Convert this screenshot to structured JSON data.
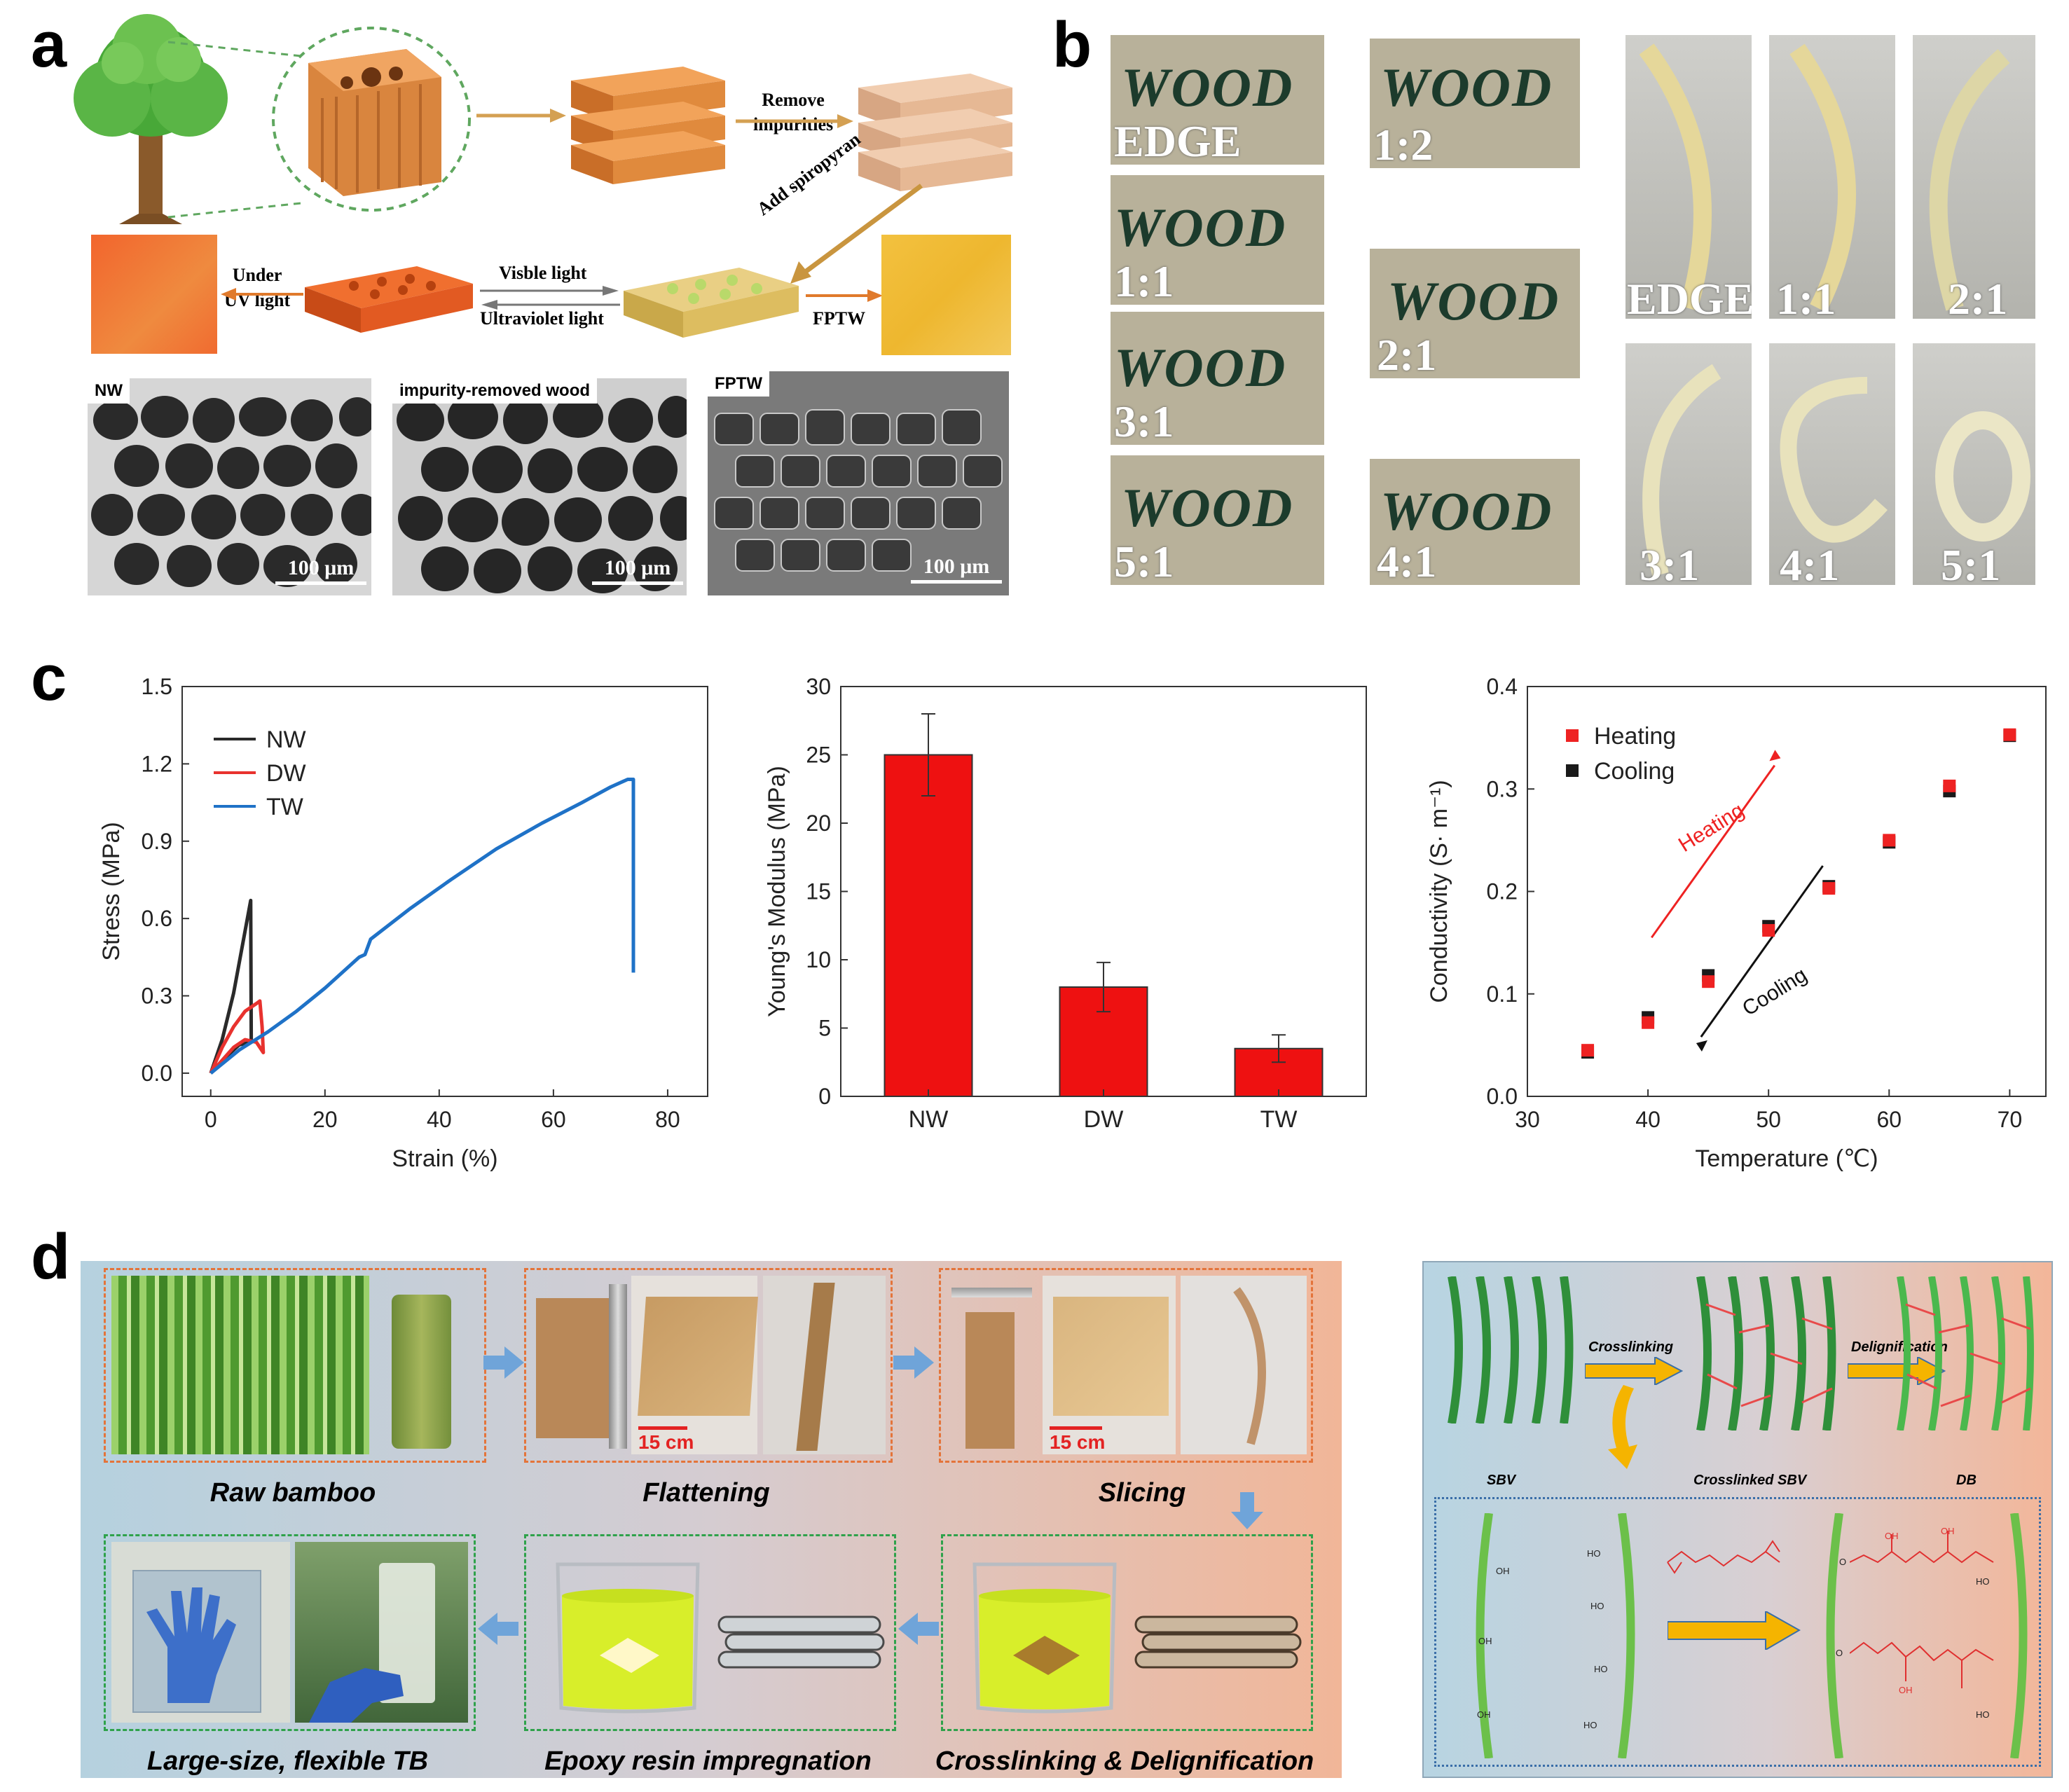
{
  "panels": {
    "a": {
      "label": "a",
      "steps": {
        "remove": "Remove\nimpurities",
        "add": "Add spiropyran",
        "visible": "Visble light",
        "ultraviolet": "Ultraviolet light",
        "under_uv": "Under\nUV light",
        "fptw": "FPTW"
      },
      "sem": [
        {
          "tag": "NW",
          "scale": "100 μm"
        },
        {
          "tag": "impurity-removed wood",
          "scale": "100 μm"
        },
        {
          "tag": "FPTW",
          "scale": "100 μm"
        }
      ]
    },
    "b": {
      "label": "b",
      "word": "WOOD",
      "left_col": [
        "EDGE",
        "1:1",
        "3:1",
        "5:1"
      ],
      "right_col": [
        "1:2",
        "2:1",
        "4:1"
      ],
      "bend": [
        "EDGE",
        "1:1",
        "2:1",
        "3:1",
        "4:1",
        "5:1"
      ]
    },
    "c": {
      "label": "c"
    },
    "d": {
      "label": "d",
      "steps": [
        "Raw bamboo",
        "Flattening",
        "Slicing",
        "Crosslinking & Delignification",
        "Epoxy resin impregnation",
        "Large-size, flexible TB"
      ],
      "scale": "15 cm",
      "scheme": {
        "crosslinking": "Crosslinking",
        "delignification": "Delignification",
        "sbv": "SBV",
        "crosslinked": "Crosslinked SBV",
        "db": "DB",
        "oh": "OH",
        "ho": "HO",
        "o": "O"
      }
    }
  },
  "chart_data": [
    {
      "type": "line",
      "xlabel": "Strain (%)",
      "ylabel": "Stress (MPa)",
      "xlim": [
        -5,
        87
      ],
      "ylim": [
        -0.09,
        1.5
      ],
      "xticks": [
        0,
        20,
        40,
        60,
        80
      ],
      "yticks": [
        0.0,
        0.3,
        0.6,
        0.9,
        1.2,
        1.5
      ],
      "ytick_labels": [
        "0.0",
        "0.3",
        "0.6",
        "0.9",
        "1.2",
        "1.5"
      ],
      "legend": "top-left",
      "grid": false,
      "series": [
        {
          "name": "NW",
          "color": "#2a2a2a",
          "points": [
            [
              0,
              0
            ],
            [
              2,
              0.13
            ],
            [
              4,
              0.31
            ],
            [
              6,
              0.55
            ],
            [
              7,
              0.67
            ],
            [
              7.1,
              0.12
            ],
            [
              5,
              0.11
            ],
            [
              3,
              0.07
            ],
            [
              1,
              0.02
            ],
            [
              0,
              0
            ]
          ]
        },
        {
          "name": "DW",
          "color": "#e8322e",
          "points": [
            [
              0,
              0
            ],
            [
              2,
              0.1
            ],
            [
              4,
              0.18
            ],
            [
              6,
              0.24
            ],
            [
              8,
              0.27
            ],
            [
              8.6,
              0.28
            ],
            [
              9,
              0.18
            ],
            [
              9.2,
              0.08
            ],
            [
              8,
              0.12
            ],
            [
              6,
              0.13
            ],
            [
              4,
              0.1
            ],
            [
              2,
              0.05
            ],
            [
              0,
              0
            ]
          ]
        },
        {
          "name": "TW",
          "color": "#1f72c7",
          "points": [
            [
              0,
              0
            ],
            [
              5,
              0.09
            ],
            [
              10,
              0.16
            ],
            [
              15,
              0.24
            ],
            [
              20,
              0.33
            ],
            [
              26,
              0.45
            ],
            [
              27,
              0.46
            ],
            [
              28,
              0.52
            ],
            [
              35,
              0.64
            ],
            [
              42,
              0.75
            ],
            [
              50,
              0.87
            ],
            [
              58,
              0.97
            ],
            [
              65,
              1.05
            ],
            [
              70,
              1.11
            ],
            [
              73,
              1.14
            ],
            [
              74,
              1.14
            ],
            [
              74,
              0.39
            ]
          ]
        }
      ]
    },
    {
      "type": "bar",
      "xlabel": "",
      "ylabel": "Young's Modulus (MPa)",
      "categories": [
        "NW",
        "DW",
        "TW"
      ],
      "values": [
        25,
        8,
        3.5
      ],
      "errors": [
        3,
        1.8,
        1.0
      ],
      "ylim": [
        0,
        30
      ],
      "yticks": [
        0,
        5,
        10,
        15,
        20,
        25,
        30
      ],
      "color": "#ee1111"
    },
    {
      "type": "scatter",
      "xlabel": "Temperature (℃)",
      "ylabel": "Conductivity (S· m⁻¹)",
      "xlim": [
        30,
        73
      ],
      "ylim": [
        0,
        0.4
      ],
      "xticks": [
        30,
        40,
        50,
        60,
        70
      ],
      "yticks": [
        0.0,
        0.1,
        0.2,
        0.3,
        0.4
      ],
      "ytick_labels": [
        "0.0",
        "0.1",
        "0.2",
        "0.3",
        "0.4"
      ],
      "legend": "top-left",
      "series": [
        {
          "name": "Heating",
          "color": "#ee2222",
          "x": [
            35,
            40,
            45,
            50,
            55,
            60,
            65,
            70
          ],
          "y": [
            0.045,
            0.072,
            0.112,
            0.162,
            0.203,
            0.25,
            0.303,
            0.353
          ]
        },
        {
          "name": "Cooling",
          "color": "#1a1a1a",
          "x": [
            35,
            40,
            45,
            50,
            55,
            60,
            65,
            70
          ],
          "y": [
            0.043,
            0.077,
            0.118,
            0.166,
            0.205,
            0.248,
            0.298,
            0.352
          ]
        }
      ],
      "annotations": [
        {
          "text": "Heating",
          "color": "#ee2222"
        },
        {
          "text": "Cooling",
          "color": "#111111"
        }
      ]
    }
  ]
}
